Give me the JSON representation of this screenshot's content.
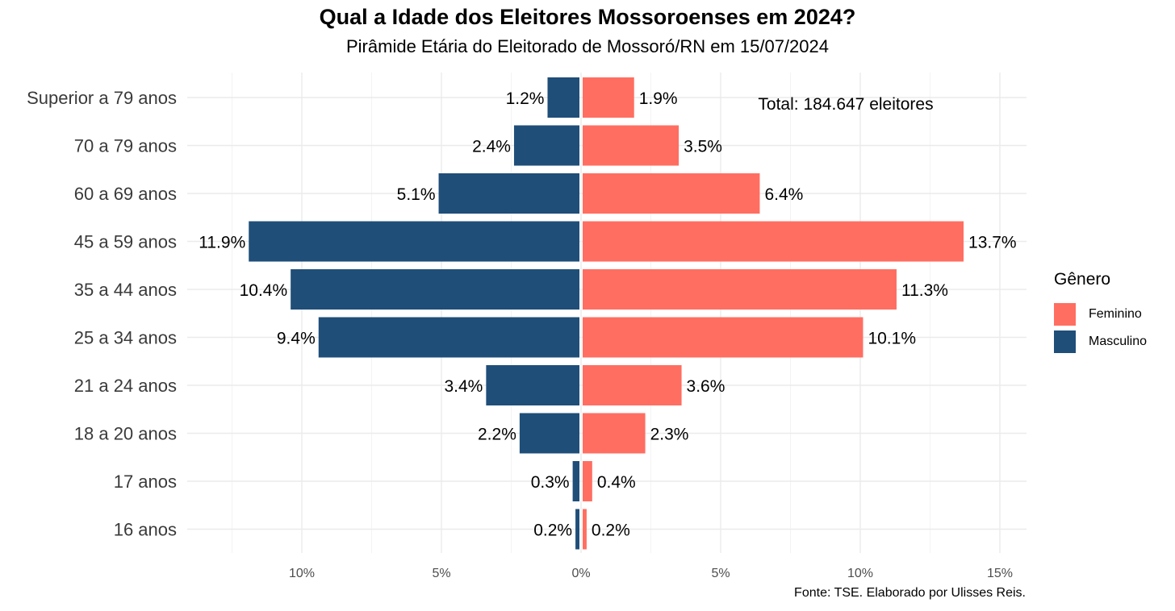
{
  "chart_data": {
    "type": "bar",
    "orientation": "horizontal",
    "title": "Qual a Idade dos Eleitores Mossoroenses em 2024?",
    "subtitle": "Pirâmide Etária do Eleitorado de Mossoró/RN em 15/07/2024",
    "categories": [
      "Superior a 79 anos",
      "70 a 79 anos",
      "60 a 69 anos",
      "45 a 59 anos",
      "35 a 44 anos",
      "25 a 34 anos",
      "21 a 24 anos",
      "18 a 20 anos",
      "17 anos",
      "16 anos"
    ],
    "series": [
      {
        "name": "Masculino",
        "color": "#1f4e79",
        "values": [
          1.2,
          2.4,
          5.1,
          11.9,
          10.4,
          9.4,
          3.4,
          2.2,
          0.3,
          0.2
        ],
        "labels": [
          "1.2%",
          "2.4%",
          "5.1%",
          "11.9%",
          "10.4%",
          "9.4%",
          "3.4%",
          "2.2%",
          "0.3%",
          "0.2%"
        ]
      },
      {
        "name": "Feminino",
        "color": "#ff6e61",
        "values": [
          1.9,
          3.5,
          6.4,
          13.7,
          11.3,
          10.1,
          3.6,
          2.3,
          0.4,
          0.2
        ],
        "labels": [
          "1.9%",
          "3.5%",
          "6.4%",
          "13.7%",
          "11.3%",
          "10.1%",
          "3.6%",
          "2.3%",
          "0.4%",
          "0.2%"
        ]
      }
    ],
    "xlim": [
      -14.2,
      15.8
    ],
    "x_ticks": [
      -10,
      -5,
      0,
      5,
      10,
      15
    ],
    "x_tick_labels": [
      "10%",
      "5%",
      "0%",
      "5%",
      "10%",
      "15%"
    ],
    "grid": true,
    "annotation": "Total: 184.647 eleitores",
    "legend_title": "Gênero",
    "legend_position": "right",
    "legend": [
      {
        "label": "Feminino",
        "color": "#ff6e61"
      },
      {
        "label": "Masculino",
        "color": "#1f4e79"
      }
    ],
    "caption": "Fonte: TSE. Elaborado por Ulisses Reis."
  }
}
